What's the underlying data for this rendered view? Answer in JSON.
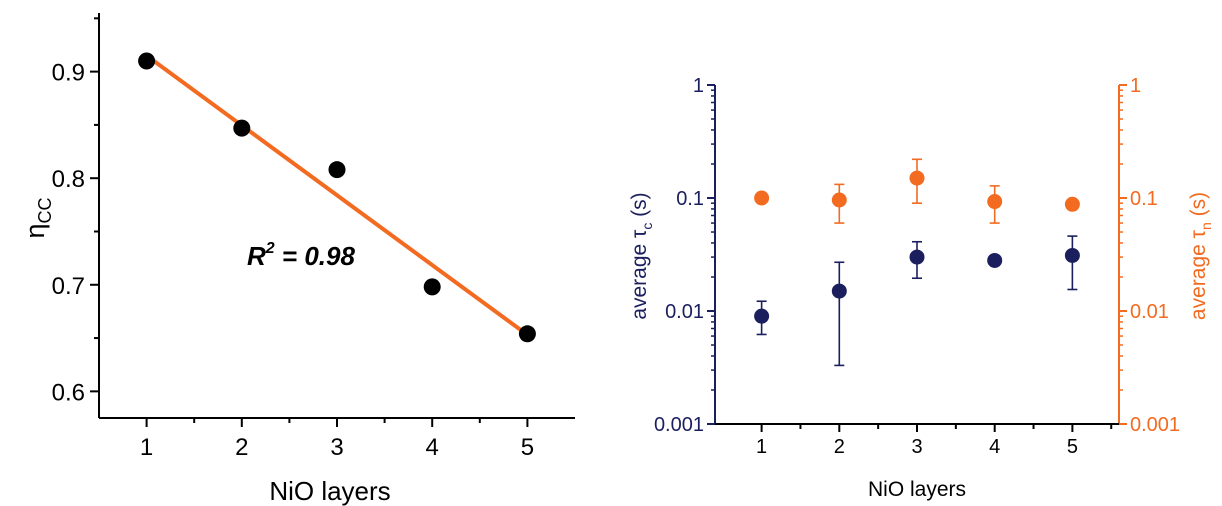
{
  "colors": {
    "black": "#000000",
    "orange": "#f26b21",
    "navy": "#1b1f5e"
  },
  "chart_data": [
    {
      "type": "scatter",
      "xlabel": "NiO layers",
      "ylabel_main": "η",
      "ylabel_sub": "CC",
      "xlim": [
        0.5,
        5.5
      ],
      "ylim": [
        0.575,
        0.955
      ],
      "xticks": [
        "1",
        "2",
        "3",
        "4",
        "5"
      ],
      "yticks": [
        "0.6",
        "0.7",
        "0.8",
        "0.9"
      ],
      "x": [
        1,
        2,
        3,
        4,
        5
      ],
      "y": [
        0.91,
        0.847,
        0.808,
        0.698,
        0.654
      ],
      "fit": {
        "type": "linear",
        "x": [
          1,
          5
        ],
        "y": [
          0.915,
          0.653
        ]
      },
      "annotation": {
        "r_label": "R",
        "r_sup": "2",
        "value_text": " = 0.98"
      },
      "grid": false
    },
    {
      "type": "scatter",
      "xlabel": "NiO layers",
      "ylabel_left_main": "average τ",
      "ylabel_left_sub": "c",
      "ylabel_left_unit": " (s)",
      "ylabel_right_main": "average τ",
      "ylabel_right_sub": "n",
      "ylabel_right_unit": " (s)",
      "xlim": [
        0.4,
        5.6
      ],
      "ylim": [
        0.001,
        1
      ],
      "yscale": "log",
      "xticks": [
        "1",
        "2",
        "3",
        "4",
        "5"
      ],
      "yticks_left": [
        "0.001",
        "0.01",
        "0.1",
        "1"
      ],
      "yticks_right": [
        "0.001",
        "0.01",
        "0.1",
        "1"
      ],
      "grid": false,
      "series": [
        {
          "axis": "left",
          "x": [
            1,
            2,
            3,
            4,
            5
          ],
          "y": [
            0.009,
            0.015,
            0.03,
            0.028,
            0.031
          ],
          "err_low": [
            0.0062,
            0.0033,
            0.0195,
            0.028,
            0.0155
          ],
          "err_high": [
            0.0122,
            0.027,
            0.041,
            0.028,
            0.046
          ]
        },
        {
          "axis": "right",
          "x": [
            1,
            2,
            3,
            4,
            5
          ],
          "y": [
            0.1,
            0.096,
            0.15,
            0.093,
            0.088
          ],
          "err_low": [
            0.1,
            0.06,
            0.09,
            0.06,
            0.088
          ],
          "err_high": [
            0.1,
            0.132,
            0.22,
            0.128,
            0.088
          ]
        }
      ]
    }
  ]
}
